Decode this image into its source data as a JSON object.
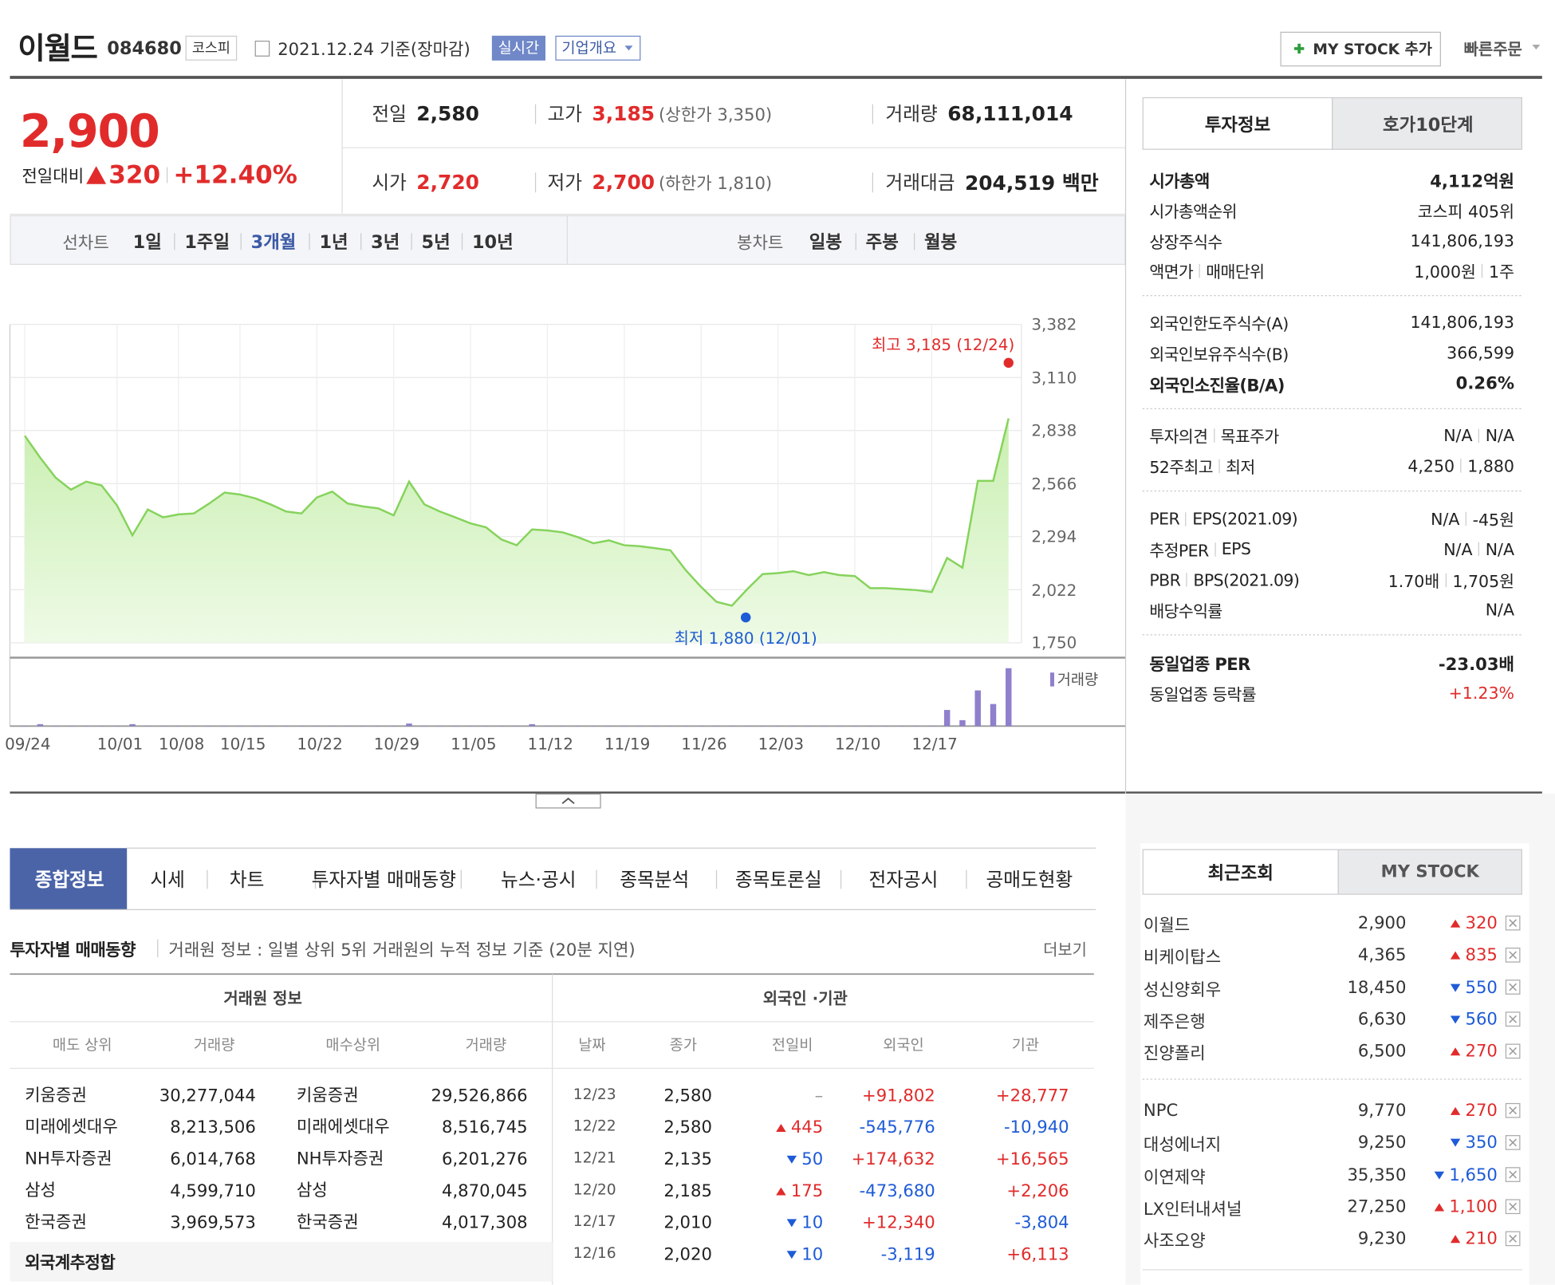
{
  "header": {
    "name": "이월드",
    "code": "084680",
    "market": "코스피",
    "date": "2021.12.24 기준(장마감)",
    "realtime": "실시간",
    "overview": "기업개요",
    "mystock": "MY STOCK 추가",
    "quick_order": "빠른주문"
  },
  "colors": {
    "up": "#e12b2b",
    "down": "#1e5bd7",
    "accent": "#3c5aa6"
  },
  "quote": {
    "price": "2,900",
    "change_label": "전일대비",
    "change": "320",
    "rate": "+12.40%",
    "stats": [
      [
        {
          "label": "전일",
          "value": "2,580"
        },
        {
          "label": "고가",
          "value": "3,185",
          "note": "(상한가 3,350)",
          "color": "#e12b2b"
        },
        {
          "label": "거래량",
          "value": "68,111,014"
        }
      ],
      [
        {
          "label": "시가",
          "value": "2,720",
          "color": "#e12b2b"
        },
        {
          "label": "저가",
          "value": "2,700",
          "note": "(하한가 1,810)",
          "color": "#e12b2b"
        },
        {
          "label": "거래대금",
          "value": "204,519 백만"
        }
      ]
    ]
  },
  "periods": {
    "line_label": "선차트",
    "line": [
      "1일",
      "1주일",
      "3개월",
      "1년",
      "3년",
      "5년",
      "10년"
    ],
    "active": 2,
    "candle_label": "봉차트",
    "candle": [
      "일봉",
      "주봉",
      "월봉"
    ]
  },
  "chart": {
    "type": "line",
    "color": "#86d35c",
    "categories": [
      "09/24",
      null,
      null,
      null,
      null,
      null,
      "10/01",
      null,
      null,
      null,
      "10/08",
      null,
      null,
      null,
      "10/15",
      null,
      null,
      null,
      null,
      "10/22",
      null,
      null,
      null,
      null,
      "10/29",
      null,
      null,
      null,
      null,
      "11/05",
      null,
      null,
      null,
      null,
      "11/12",
      null,
      null,
      null,
      null,
      "11/19",
      null,
      null,
      null,
      null,
      "11/26",
      null,
      null,
      null,
      null,
      "12/03",
      null,
      null,
      null,
      null,
      "12/10",
      null,
      null,
      null,
      null,
      "12/17",
      null,
      null,
      null,
      null,
      null
    ],
    "values": [
      2811,
      2699,
      2597,
      2535,
      2576,
      2556,
      2454,
      2301,
      2433,
      2393,
      2408,
      2413,
      2464,
      2520,
      2510,
      2490,
      2459,
      2423,
      2413,
      2495,
      2525,
      2464,
      2449,
      2439,
      2403,
      2576,
      2459,
      2423,
      2393,
      2362,
      2342,
      2280,
      2250,
      2331,
      2326,
      2316,
      2291,
      2260,
      2275,
      2250,
      2245,
      2235,
      2224,
      2122,
      2036,
      1960,
      1940,
      2025,
      2102,
      2107,
      2117,
      2097,
      2112,
      2097,
      2092,
      2030,
      2030,
      2025,
      2020,
      2010,
      2185,
      2135,
      2580,
      2580,
      2900
    ],
    "ylim": [
      1750,
      3382
    ],
    "yticks": [
      {
        "value": 1750,
        "label": "1,750"
      },
      {
        "value": 2022,
        "label": "2,022"
      },
      {
        "value": 2294,
        "label": "2,294"
      },
      {
        "value": 2566,
        "label": "2,566"
      },
      {
        "value": 2838,
        "label": "2,838"
      },
      {
        "value": 3110,
        "label": "3,110"
      },
      {
        "value": 3382,
        "label": "3,382"
      }
    ],
    "grid": true,
    "annotations": [
      {
        "text": "최고 3,185 (12/24)",
        "value": 3185,
        "color": "#e12b2b"
      },
      {
        "text": "최저 1,880 (12/01)",
        "value": 1880,
        "color": "#1e5bd7"
      }
    ],
    "volume": {
      "name": "거래량",
      "color": "#8f7fcc",
      "ylim": [
        0,
        70000000
      ],
      "values": [
        400000,
        2300000,
        400000,
        400000,
        400000,
        400000,
        400000,
        2300000,
        400000,
        400000,
        400000,
        400000,
        400000,
        400000,
        400000,
        400000,
        400000,
        400000,
        400000,
        400000,
        400000,
        400000,
        400000,
        400000,
        400000,
        3000000,
        400000,
        400000,
        400000,
        400000,
        400000,
        400000,
        400000,
        2300000,
        400000,
        400000,
        400000,
        400000,
        400000,
        400000,
        400000,
        400000,
        400000,
        400000,
        400000,
        400000,
        400000,
        400000,
        400000,
        400000,
        400000,
        400000,
        400000,
        400000,
        400000,
        400000,
        400000,
        400000,
        400000,
        400000,
        19000000,
        7000000,
        42000000,
        26000000,
        68111014
      ]
    }
  },
  "invest_tabs": [
    "투자정보",
    "호가10단계"
  ],
  "invest": [
    [
      {
        "label": [
          "시가총액"
        ],
        "value": [
          "4,112억원"
        ],
        "bold": true
      },
      {
        "label": [
          "시가총액순위"
        ],
        "value": [
          "코스피 405위"
        ]
      },
      {
        "label": [
          "상장주식수"
        ],
        "value": [
          "141,806,193"
        ]
      },
      {
        "label": [
          "액면가",
          "매매단위"
        ],
        "value": [
          "1,000원",
          "1주"
        ]
      }
    ],
    [
      {
        "label": [
          "외국인한도주식수(A)"
        ],
        "value": [
          "141,806,193"
        ]
      },
      {
        "label": [
          "외국인보유주식수(B)"
        ],
        "value": [
          "366,599"
        ]
      },
      {
        "label": [
          "외국인소진율(B/A)"
        ],
        "value": [
          "0.26%"
        ],
        "bold": true
      }
    ],
    [
      {
        "label": [
          "투자의견",
          "목표주가"
        ],
        "value": [
          "N/A",
          "N/A"
        ]
      },
      {
        "label": [
          "52주최고",
          "최저"
        ],
        "value": [
          "4,250",
          "1,880"
        ]
      }
    ],
    [
      {
        "label": [
          "PER",
          "EPS(2021.09)"
        ],
        "value": [
          "N/A",
          "-45원"
        ]
      },
      {
        "label": [
          "추정PER",
          "EPS"
        ],
        "value": [
          "N/A",
          "N/A"
        ]
      },
      {
        "label": [
          "PBR",
          "BPS(2021.09)"
        ],
        "value": [
          "1.70배",
          "1,705원"
        ]
      },
      {
        "label": [
          "배당수익률"
        ],
        "value": [
          "N/A"
        ]
      }
    ],
    [
      {
        "label": [
          "동일업종 PER"
        ],
        "value": [
          "-23.03배"
        ],
        "bold": true
      },
      {
        "label": [
          "동일업종 등락률"
        ],
        "value": [
          "+1.23%"
        ],
        "color": "#e12b2b"
      }
    ]
  ],
  "main_tabs": {
    "items": [
      "종합정보",
      "시세",
      "차트",
      "투자자별 매매동향",
      "뉴스·공시",
      "종목분석",
      "종목토론실",
      "전자공시",
      "공매도현황"
    ],
    "active": 0
  },
  "trading": {
    "title": "투자자별 매매동향",
    "desc": "거래원 정보 : 일별 상위 5위 거래원의 누적 정보 기준 (20분 지연)",
    "more": "더보기",
    "broker_header": "거래원 정보",
    "foreign_header": "외국인 ·기관",
    "broker_columns": [
      "매도 상위",
      "거래량",
      "매수상위",
      "거래량"
    ],
    "broker_rows": [
      [
        "키움증권",
        "30,277,044",
        "키움증권",
        "29,526,866"
      ],
      [
        "미래에셋대우",
        "8,213,506",
        "미래에셋대우",
        "8,516,745"
      ],
      [
        "NH투자증권",
        "6,014,768",
        "NH투자증권",
        "6,201,276"
      ],
      [
        "삼성",
        "4,599,710",
        "삼성",
        "4,870,045"
      ],
      [
        "한국증권",
        "3,969,573",
        "한국증권",
        "4,017,308"
      ]
    ],
    "broker_footer": "외국계추정합",
    "foreign_columns": [
      "날짜",
      "종가",
      "전일비",
      "외국인",
      "기관"
    ],
    "foreign_rows": [
      {
        "date": "12/23",
        "close": "2,580",
        "dir": "flat",
        "diff": "–",
        "foreign": "+91,802",
        "inst": "+28,777"
      },
      {
        "date": "12/22",
        "close": "2,580",
        "dir": "up",
        "diff": "445",
        "foreign": "-545,776",
        "inst": "-10,940"
      },
      {
        "date": "12/21",
        "close": "2,135",
        "dir": "down",
        "diff": "50",
        "foreign": "+174,632",
        "inst": "+16,565"
      },
      {
        "date": "12/20",
        "close": "2,185",
        "dir": "up",
        "diff": "175",
        "foreign": "-473,680",
        "inst": "+2,206"
      },
      {
        "date": "12/17",
        "close": "2,010",
        "dir": "down",
        "diff": "10",
        "foreign": "+12,340",
        "inst": "-3,804"
      },
      {
        "date": "12/16",
        "close": "2,020",
        "dir": "down",
        "diff": "10",
        "foreign": "-3,119",
        "inst": "+6,113"
      }
    ]
  },
  "recent": {
    "tabs": [
      "최근조회",
      "MY STOCK"
    ],
    "groups": [
      [
        {
          "name": "이월드",
          "price": "2,900",
          "dir": "up",
          "change": "320"
        },
        {
          "name": "비케이탑스",
          "price": "4,365",
          "dir": "up",
          "change": "835"
        },
        {
          "name": "성신양회우",
          "price": "18,450",
          "dir": "down",
          "change": "550"
        },
        {
          "name": "제주은행",
          "price": "6,630",
          "dir": "down",
          "change": "560"
        },
        {
          "name": "진양폴리",
          "price": "6,500",
          "dir": "up",
          "change": "270"
        }
      ],
      [
        {
          "name": "NPC",
          "price": "9,770",
          "dir": "up",
          "change": "270"
        },
        {
          "name": "대성에너지",
          "price": "9,250",
          "dir": "down",
          "change": "350"
        },
        {
          "name": "이연제약",
          "price": "35,350",
          "dir": "down",
          "change": "1,650"
        },
        {
          "name": "LX인터내셔널",
          "price": "27,250",
          "dir": "up",
          "change": "1,100"
        },
        {
          "name": "사조오양",
          "price": "9,230",
          "dir": "up",
          "change": "210"
        }
      ]
    ]
  }
}
